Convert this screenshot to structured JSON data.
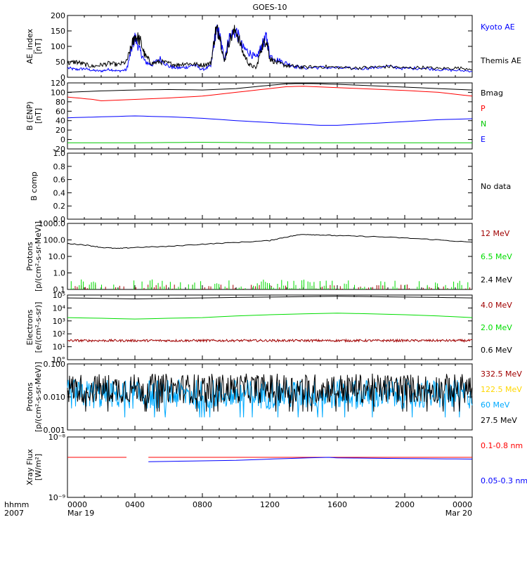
{
  "chart_data": {
    "title": "GOES-10",
    "type": "line",
    "x_axis": {
      "tick_labels": [
        "0000",
        "0400",
        "0800",
        "1200",
        "1600",
        "2000",
        "0000"
      ],
      "sub_labels": [
        "Mar 19",
        "",
        "",
        "",
        "",
        "",
        "Mar 20"
      ],
      "corner_label_1": "hhmm",
      "corner_label_2": "2007",
      "range_hours": [
        0,
        24
      ]
    },
    "panels": [
      {
        "id": "ae",
        "ylabel": "AE_index\n[nT]",
        "ylim": [
          0,
          200
        ],
        "ticks": [
          "0",
          "50",
          "100",
          "150",
          "200"
        ],
        "series": [
          {
            "name": "Kyoto AE",
            "color": "#0000ff",
            "values": [
              [
                0,
                30
              ],
              [
                0.5,
                25
              ],
              [
                1,
                28
              ],
              [
                1.5,
                22
              ],
              [
                2,
                20
              ],
              [
                2.5,
                26
              ],
              [
                3,
                20
              ],
              [
                3.5,
                24
              ],
              [
                3.8,
                90
              ],
              [
                4,
                130
              ],
              [
                4.3,
                85
              ],
              [
                4.6,
                50
              ],
              [
                5,
                40
              ],
              [
                5.5,
                60
              ],
              [
                6,
                35
              ],
              [
                6.5,
                30
              ],
              [
                7,
                32
              ],
              [
                7.5,
                40
              ],
              [
                8,
                25
              ],
              [
                8.5,
                35
              ],
              [
                8.8,
                150
              ],
              [
                9,
                140
              ],
              [
                9.3,
                60
              ],
              [
                9.6,
                130
              ],
              [
                10,
                150
              ],
              [
                10.4,
                95
              ],
              [
                10.8,
                80
              ],
              [
                11.2,
                60
              ],
              [
                11.5,
                100
              ],
              [
                11.8,
                130
              ],
              [
                12,
                70
              ],
              [
                12.5,
                55
              ],
              [
                13,
                45
              ],
              [
                13.5,
                35
              ],
              [
                14,
                30
              ],
              [
                15,
                32
              ],
              [
                16,
                30
              ],
              [
                17,
                28
              ],
              [
                18,
                30
              ],
              [
                19,
                35
              ],
              [
                20,
                28
              ],
              [
                21,
                30
              ],
              [
                22,
                25
              ],
              [
                23,
                22
              ],
              [
                24,
                20
              ]
            ]
          },
          {
            "name": "Themis AE",
            "color": "#000000",
            "values": [
              [
                0,
                45
              ],
              [
                0.5,
                50
              ],
              [
                1,
                42
              ],
              [
                1.5,
                35
              ],
              [
                2,
                40
              ],
              [
                2.5,
                45
              ],
              [
                3,
                40
              ],
              [
                3.5,
                50
              ],
              [
                3.8,
                100
              ],
              [
                4,
                135
              ],
              [
                4.3,
                120
              ],
              [
                4.6,
                70
              ],
              [
                5,
                45
              ],
              [
                5.5,
                50
              ],
              [
                6,
                45
              ],
              [
                6.5,
                40
              ],
              [
                7,
                45
              ],
              [
                7.5,
                42
              ],
              [
                8,
                40
              ],
              [
                8.5,
                45
              ],
              [
                8.8,
                155
              ],
              [
                9,
                145
              ],
              [
                9.3,
                50
              ],
              [
                9.6,
                120
              ],
              [
                10,
                155
              ],
              [
                10.4,
                80
              ],
              [
                10.8,
                40
              ],
              [
                11.2,
                30
              ],
              [
                11.5,
                95
              ],
              [
                11.8,
                125
              ],
              [
                12,
                60
              ],
              [
                12.5,
                45
              ],
              [
                13,
                38
              ],
              [
                13.5,
                35
              ],
              [
                14,
                32
              ],
              [
                15,
                35
              ],
              [
                16,
                32
              ],
              [
                17,
                30
              ],
              [
                18,
                32
              ],
              [
                19,
                35
              ],
              [
                20,
                30
              ],
              [
                21,
                32
              ],
              [
                22,
                28
              ],
              [
                23,
                30
              ],
              [
                24,
                28
              ]
            ]
          }
        ]
      },
      {
        "id": "b",
        "ylabel": "B (ENP)\n[nT]",
        "ylim": [
          -20,
          120
        ],
        "ticks": [
          "-20",
          "0",
          "20",
          "40",
          "60",
          "80",
          "100",
          "120"
        ],
        "series": [
          {
            "name": "Bmag",
            "color": "#000000",
            "values": [
              [
                0,
                100
              ],
              [
                2,
                103
              ],
              [
                4,
                105
              ],
              [
                6,
                106
              ],
              [
                8,
                105
              ],
              [
                10,
                108
              ],
              [
                12,
                115
              ],
              [
                13,
                118
              ],
              [
                14,
                119
              ],
              [
                16,
                117
              ],
              [
                18,
                114
              ],
              [
                20,
                111
              ],
              [
                22,
                108
              ],
              [
                24,
                105
              ]
            ]
          },
          {
            "name": "P",
            "color": "#ff0000",
            "values": [
              [
                0,
                90
              ],
              [
                1.5,
                85
              ],
              [
                2,
                82
              ],
              [
                4,
                85
              ],
              [
                6,
                88
              ],
              [
                8,
                92
              ],
              [
                10,
                100
              ],
              [
                12,
                108
              ],
              [
                13,
                112
              ],
              [
                14,
                113
              ],
              [
                16,
                110
              ],
              [
                18,
                107
              ],
              [
                20,
                104
              ],
              [
                22,
                100
              ],
              [
                24,
                92
              ]
            ]
          },
          {
            "name": "N",
            "color": "#00c800",
            "values": [
              [
                0,
                -7
              ],
              [
                4,
                -7
              ],
              [
                8,
                -6
              ],
              [
                12,
                -7
              ],
              [
                16,
                -7
              ],
              [
                20,
                -7
              ],
              [
                24,
                -7
              ]
            ]
          },
          {
            "name": "E",
            "color": "#0000ff",
            "values": [
              [
                0,
                46
              ],
              [
                2,
                48
              ],
              [
                4,
                50
              ],
              [
                6,
                48
              ],
              [
                8,
                45
              ],
              [
                10,
                40
              ],
              [
                12,
                36
              ],
              [
                14,
                32
              ],
              [
                15,
                30
              ],
              [
                16,
                30
              ],
              [
                18,
                34
              ],
              [
                20,
                38
              ],
              [
                22,
                42
              ],
              [
                24,
                44
              ]
            ]
          }
        ]
      },
      {
        "id": "bcomp",
        "ylabel": "B comp",
        "ylim": [
          0,
          1
        ],
        "ticks": [
          "0.0",
          "0.2",
          "0.4",
          "0.6",
          "0.8",
          "1.0"
        ],
        "note": "No data",
        "series": []
      },
      {
        "id": "protons_low",
        "ylabel": "Protons\n[p/(cm²-s-sr-MeV)]",
        "ylim": [
          0.1,
          1000
        ],
        "log": true,
        "ticks": [
          "0.1",
          "1.0",
          "10.0",
          "100.0",
          "1000.0"
        ],
        "series": [
          {
            "name": "12 MeV",
            "color": "#a00000",
            "values": "sparse spikes near 0.1-0.2"
          },
          {
            "name": "6.5 MeV",
            "color": "#00dd00",
            "values": "sparse spikes near 0.1-0.4"
          },
          {
            "name": "2.4 MeV",
            "color": "#000000",
            "values": [
              [
                0,
                60
              ],
              [
                1,
                50
              ],
              [
                2,
                35
              ],
              [
                3,
                30
              ],
              [
                4,
                35
              ],
              [
                6,
                40
              ],
              [
                8,
                55
              ],
              [
                10,
                70
              ],
              [
                12,
                90
              ],
              [
                13,
                150
              ],
              [
                14,
                220
              ],
              [
                15,
                200
              ],
              [
                16,
                180
              ],
              [
                18,
                160
              ],
              [
                20,
                130
              ],
              [
                22,
                100
              ],
              [
                24,
                70
              ]
            ]
          }
        ]
      },
      {
        "id": "electrons",
        "ylabel": "Electrons\n[e/(cm²-s-sr)]",
        "ylim": [
          1,
          100000
        ],
        "log": true,
        "ticks": [
          "10°",
          "10¹",
          "10²",
          "10³",
          "10⁴",
          "10⁵"
        ],
        "series": [
          {
            "name": "4.0 MeV",
            "color": "#a00000",
            "values": "noisy around 30"
          },
          {
            "name": "2.0 MeV",
            "color": "#00dd00",
            "values": [
              [
                0,
                1800
              ],
              [
                4,
                1400
              ],
              [
                8,
                1800
              ],
              [
                12,
                3000
              ],
              [
                16,
                4000
              ],
              [
                20,
                3000
              ],
              [
                24,
                1800
              ]
            ]
          },
          {
            "name": "0.6 MeV",
            "color": "#000000",
            "values": [
              [
                0,
                60000
              ],
              [
                4,
                50000
              ],
              [
                8,
                60000
              ],
              [
                12,
                70000
              ],
              [
                16,
                80000
              ],
              [
                20,
                70000
              ],
              [
                24,
                60000
              ]
            ]
          }
        ]
      },
      {
        "id": "protons_high",
        "ylabel": "Protons\n[p/(cm²-s-sr-MeV)]",
        "ylim": [
          0.001,
          0.1
        ],
        "log": true,
        "ticks": [
          "0.001",
          "0.010",
          "0.100"
        ],
        "series": [
          {
            "name": "332.5 MeV",
            "color": "#a00000",
            "values": "none visible"
          },
          {
            "name": "122.5 MeV",
            "color": "#ffd700",
            "values": "none visible"
          },
          {
            "name": "60 MeV",
            "color": "#00aaff",
            "values": "noisy around 0.012"
          },
          {
            "name": "27.5 MeV",
            "color": "#000000",
            "values": "noisy around 0.018"
          }
        ]
      },
      {
        "id": "xray",
        "ylabel": "Xray Flux\n[W/m²]",
        "ylim": [
          1e-09,
          1e-08
        ],
        "log": true,
        "ticks": [
          "10⁻⁹",
          "10⁻⁸"
        ],
        "series": [
          {
            "name": "0.1-0.8 nm",
            "color": "#ff0000",
            "values": [
              [
                0,
                4.6e-09
              ],
              [
                3.5,
                4.6e-09
              ],
              [
                4.8,
                4.6e-09
              ],
              [
                24,
                4.6e-09
              ]
            ],
            "gap_hours": [
              3.5,
              4.8
            ]
          },
          {
            "name": "0.05-0.3 nm",
            "color": "#0000ff",
            "values": [
              [
                4.8,
                3.9e-09
              ],
              [
                10,
                4.1e-09
              ],
              [
                13,
                4.4e-09
              ],
              [
                15.5,
                4.6e-09
              ],
              [
                16,
                4.5e-09
              ],
              [
                20,
                4.4e-09
              ],
              [
                24,
                4.3e-09
              ]
            ]
          }
        ]
      }
    ],
    "right_labels": {
      "ae": [
        "Kyoto AE",
        "Themis AE"
      ],
      "b": [
        "Bmag",
        "P",
        "N",
        "E"
      ],
      "bcomp": [
        "No data"
      ],
      "protons_low": [
        "12 MeV",
        "6.5 MeV",
        "2.4 MeV"
      ],
      "electrons": [
        "4.0 MeV",
        "2.0 MeV",
        "0.6 MeV"
      ],
      "protons_high": [
        "332.5 MeV",
        "122.5 MeV",
        "60 MeV",
        "27.5 MeV"
      ],
      "xray": [
        "0.1-0.8 nm",
        "0.05-0.3 nm"
      ]
    }
  }
}
